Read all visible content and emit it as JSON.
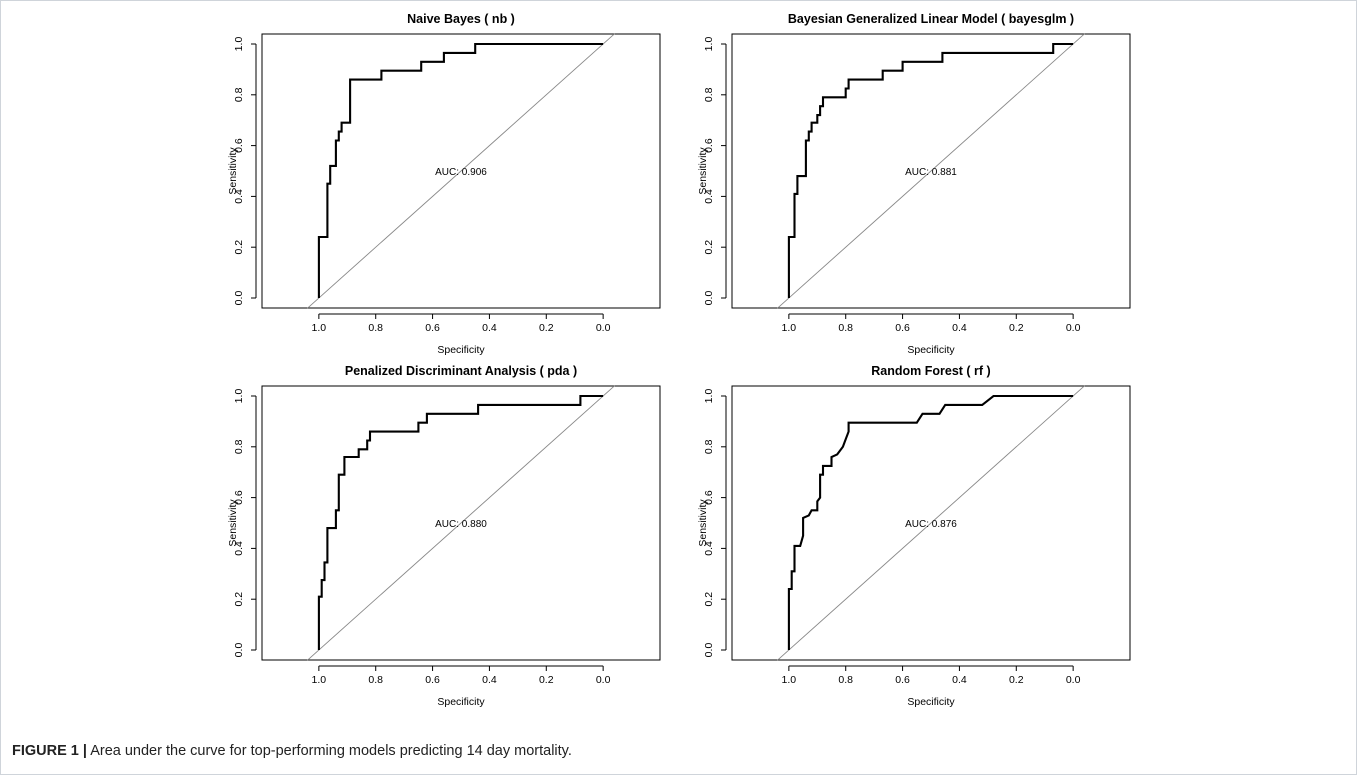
{
  "caption": {
    "label": "FIGURE 1 |",
    "text": "Area under the curve for top-performing models predicting 14 day mortality."
  },
  "chart_data": [
    {
      "type": "line",
      "title": "Naive Bayes ( nb )",
      "xlabel": "Specificity",
      "ylabel": "Sensitivity",
      "xlim": [
        1.2,
        -0.2
      ],
      "ylim": [
        0,
        1
      ],
      "x_reversed": true,
      "xticks": [
        "1.0",
        "0.8",
        "0.6",
        "0.4",
        "0.2",
        "0.0"
      ],
      "yticks": [
        "0.0",
        "0.2",
        "0.4",
        "0.6",
        "0.8",
        "1.0"
      ],
      "annotation": "AUC: 0.906",
      "grid": false,
      "series": [
        {
          "points": [
            [
              1.0,
              0.0
            ],
            [
              1.0,
              0.24
            ],
            [
              0.97,
              0.24
            ],
            [
              0.97,
              0.45
            ],
            [
              0.96,
              0.45
            ],
            [
              0.96,
              0.52
            ],
            [
              0.94,
              0.52
            ],
            [
              0.94,
              0.62
            ],
            [
              0.93,
              0.62
            ],
            [
              0.93,
              0.655
            ],
            [
              0.92,
              0.655
            ],
            [
              0.92,
              0.69
            ],
            [
              0.89,
              0.69
            ],
            [
              0.89,
              0.86
            ],
            [
              0.78,
              0.86
            ],
            [
              0.78,
              0.895
            ],
            [
              0.64,
              0.895
            ],
            [
              0.64,
              0.93
            ],
            [
              0.56,
              0.93
            ],
            [
              0.56,
              0.965
            ],
            [
              0.45,
              0.965
            ],
            [
              0.45,
              1.0
            ],
            [
              0.0,
              1.0
            ]
          ]
        },
        {
          "points": [
            [
              1.0,
              0.0
            ],
            [
              0.0,
              1.0
            ]
          ]
        }
      ]
    },
    {
      "type": "line",
      "title": "Bayesian Generalized Linear Model ( bayesglm )",
      "xlabel": "Specificity",
      "ylabel": "Sensitivity",
      "xlim": [
        1.2,
        -0.2
      ],
      "ylim": [
        0,
        1
      ],
      "x_reversed": true,
      "xticks": [
        "1.0",
        "0.8",
        "0.6",
        "0.4",
        "0.2",
        "0.0"
      ],
      "yticks": [
        "0.0",
        "0.2",
        "0.4",
        "0.6",
        "0.8",
        "1.0"
      ],
      "annotation": "AUC: 0.881",
      "grid": false,
      "series": [
        {
          "points": [
            [
              1.0,
              0.0
            ],
            [
              1.0,
              0.24
            ],
            [
              0.98,
              0.24
            ],
            [
              0.98,
              0.41
            ],
            [
              0.97,
              0.41
            ],
            [
              0.97,
              0.48
            ],
            [
              0.94,
              0.48
            ],
            [
              0.94,
              0.62
            ],
            [
              0.93,
              0.62
            ],
            [
              0.93,
              0.655
            ],
            [
              0.92,
              0.655
            ],
            [
              0.92,
              0.69
            ],
            [
              0.9,
              0.69
            ],
            [
              0.9,
              0.72
            ],
            [
              0.89,
              0.72
            ],
            [
              0.89,
              0.755
            ],
            [
              0.88,
              0.755
            ],
            [
              0.88,
              0.79
            ],
            [
              0.8,
              0.79
            ],
            [
              0.8,
              0.825
            ],
            [
              0.79,
              0.825
            ],
            [
              0.79,
              0.86
            ],
            [
              0.67,
              0.86
            ],
            [
              0.67,
              0.895
            ],
            [
              0.6,
              0.895
            ],
            [
              0.6,
              0.93
            ],
            [
              0.46,
              0.93
            ],
            [
              0.46,
              0.965
            ],
            [
              0.07,
              0.965
            ],
            [
              0.07,
              1.0
            ],
            [
              0.0,
              1.0
            ]
          ]
        },
        {
          "points": [
            [
              1.0,
              0.0
            ],
            [
              0.0,
              1.0
            ]
          ]
        }
      ]
    },
    {
      "type": "line",
      "title": "Penalized Discriminant Analysis ( pda )",
      "xlabel": "Specificity",
      "ylabel": "Sensitivity",
      "xlim": [
        1.2,
        -0.2
      ],
      "ylim": [
        0,
        1
      ],
      "x_reversed": true,
      "xticks": [
        "1.0",
        "0.8",
        "0.6",
        "0.4",
        "0.2",
        "0.0"
      ],
      "yticks": [
        "0.0",
        "0.2",
        "0.4",
        "0.6",
        "0.8",
        "1.0"
      ],
      "annotation": "AUC: 0.880",
      "grid": false,
      "series": [
        {
          "points": [
            [
              1.0,
              0.0
            ],
            [
              1.0,
              0.21
            ],
            [
              0.99,
              0.21
            ],
            [
              0.99,
              0.275
            ],
            [
              0.98,
              0.275
            ],
            [
              0.98,
              0.345
            ],
            [
              0.97,
              0.345
            ],
            [
              0.97,
              0.48
            ],
            [
              0.94,
              0.48
            ],
            [
              0.94,
              0.55
            ],
            [
              0.93,
              0.55
            ],
            [
              0.93,
              0.69
            ],
            [
              0.91,
              0.69
            ],
            [
              0.91,
              0.76
            ],
            [
              0.86,
              0.76
            ],
            [
              0.86,
              0.79
            ],
            [
              0.83,
              0.79
            ],
            [
              0.83,
              0.825
            ],
            [
              0.82,
              0.825
            ],
            [
              0.82,
              0.86
            ],
            [
              0.65,
              0.86
            ],
            [
              0.65,
              0.895
            ],
            [
              0.62,
              0.895
            ],
            [
              0.62,
              0.93
            ],
            [
              0.44,
              0.93
            ],
            [
              0.44,
              0.965
            ],
            [
              0.08,
              0.965
            ],
            [
              0.08,
              1.0
            ],
            [
              0.0,
              1.0
            ]
          ]
        },
        {
          "points": [
            [
              1.0,
              0.0
            ],
            [
              0.0,
              1.0
            ]
          ]
        }
      ]
    },
    {
      "type": "line",
      "title": "Random Forest ( rf )",
      "xlabel": "Specificity",
      "ylabel": "Sensitivity",
      "xlim": [
        1.2,
        -0.2
      ],
      "ylim": [
        0,
        1
      ],
      "x_reversed": true,
      "xticks": [
        "1.0",
        "0.8",
        "0.6",
        "0.4",
        "0.2",
        "0.0"
      ],
      "yticks": [
        "0.0",
        "0.2",
        "0.4",
        "0.6",
        "0.8",
        "1.0"
      ],
      "annotation": "AUC: 0.876",
      "grid": false,
      "series": [
        {
          "points": [
            [
              1.0,
              0.0
            ],
            [
              1.0,
              0.24
            ],
            [
              0.99,
              0.24
            ],
            [
              0.99,
              0.31
            ],
            [
              0.98,
              0.31
            ],
            [
              0.98,
              0.41
            ],
            [
              0.96,
              0.41
            ],
            [
              0.95,
              0.45
            ],
            [
              0.95,
              0.52
            ],
            [
              0.93,
              0.53
            ],
            [
              0.92,
              0.55
            ],
            [
              0.9,
              0.55
            ],
            [
              0.9,
              0.585
            ],
            [
              0.89,
              0.6
            ],
            [
              0.89,
              0.69
            ],
            [
              0.88,
              0.69
            ],
            [
              0.88,
              0.725
            ],
            [
              0.85,
              0.725
            ],
            [
              0.85,
              0.76
            ],
            [
              0.83,
              0.77
            ],
            [
              0.81,
              0.8
            ],
            [
              0.8,
              0.83
            ],
            [
              0.79,
              0.86
            ],
            [
              0.79,
              0.895
            ],
            [
              0.55,
              0.895
            ],
            [
              0.53,
              0.93
            ],
            [
              0.47,
              0.93
            ],
            [
              0.45,
              0.965
            ],
            [
              0.32,
              0.965
            ],
            [
              0.28,
              1.0
            ],
            [
              0.0,
              1.0
            ]
          ]
        },
        {
          "points": [
            [
              1.0,
              0.0
            ],
            [
              0.0,
              1.0
            ]
          ]
        }
      ]
    }
  ]
}
